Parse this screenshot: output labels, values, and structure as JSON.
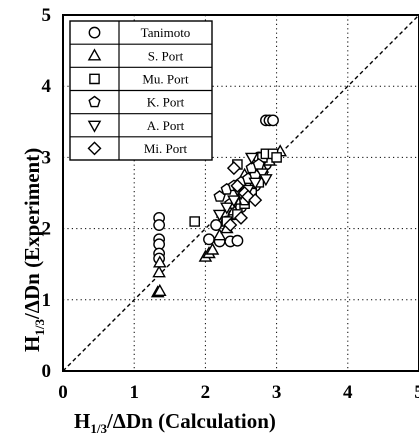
{
  "chart_data": {
    "type": "scatter",
    "xlim": [
      0,
      5
    ],
    "ylim": [
      0,
      5
    ],
    "x_ticks": [
      "0",
      "1",
      "2",
      "3",
      "4",
      "5"
    ],
    "y_ticks": [
      "0",
      "1",
      "2",
      "3",
      "4",
      "5"
    ],
    "xlabel": {
      "main": "H",
      "sub": "1/3",
      "rest": "/ΔDn  (Calculation)"
    },
    "ylabel": {
      "main": "H",
      "sub": "1/3",
      "rest": "/ΔDn  (Experiment)"
    },
    "grid": true,
    "reference_line": {
      "from": [
        0,
        0
      ],
      "to": [
        5,
        5
      ],
      "style": "dashed"
    },
    "legend_position": "top-left",
    "series": [
      {
        "name": "Tanimoto",
        "marker": "circle",
        "points": [
          [
            1.35,
            2.15
          ],
          [
            1.35,
            2.05
          ],
          [
            1.35,
            1.85
          ],
          [
            1.35,
            1.78
          ],
          [
            1.35,
            1.65
          ],
          [
            1.35,
            1.58
          ],
          [
            2.05,
            1.85
          ],
          [
            2.2,
            1.82
          ],
          [
            2.35,
            1.82
          ],
          [
            2.45,
            1.83
          ],
          [
            2.15,
            2.05
          ],
          [
            2.3,
            2.1
          ],
          [
            2.4,
            2.2
          ],
          [
            2.5,
            2.3
          ],
          [
            2.6,
            2.45
          ],
          [
            2.7,
            2.6
          ],
          [
            2.8,
            2.75
          ],
          [
            2.85,
            2.9
          ],
          [
            2.75,
            3.0
          ],
          [
            2.85,
            3.52
          ],
          [
            2.9,
            3.52
          ],
          [
            2.95,
            3.52
          ]
        ]
      },
      {
        "name": "S. Port",
        "marker": "triangle-up",
        "points": [
          [
            1.33,
            1.1
          ],
          [
            1.36,
            1.12
          ],
          [
            1.35,
            1.38
          ],
          [
            1.36,
            1.52
          ],
          [
            2.0,
            1.6
          ],
          [
            2.05,
            1.65
          ],
          [
            2.1,
            1.7
          ],
          [
            2.2,
            1.9
          ],
          [
            2.3,
            2.0
          ],
          [
            2.4,
            2.25
          ],
          [
            2.5,
            2.4
          ],
          [
            2.6,
            2.6
          ],
          [
            2.7,
            2.7
          ],
          [
            2.8,
            2.85
          ],
          [
            2.9,
            2.95
          ],
          [
            3.05,
            3.08
          ],
          [
            2.55,
            2.75
          ]
        ]
      },
      {
        "name": "Mu. Port",
        "marker": "square",
        "points": [
          [
            1.85,
            2.1
          ],
          [
            2.3,
            2.1
          ],
          [
            2.45,
            2.2
          ],
          [
            2.55,
            2.35
          ],
          [
            2.65,
            2.5
          ],
          [
            2.75,
            2.65
          ],
          [
            2.8,
            3.0
          ],
          [
            2.85,
            3.05
          ],
          [
            2.95,
            3.05
          ],
          [
            3.0,
            3.0
          ],
          [
            2.45,
            2.9
          ]
        ]
      },
      {
        "name": "K. Port",
        "marker": "pentagon",
        "points": [
          [
            2.2,
            2.45
          ],
          [
            2.3,
            2.55
          ],
          [
            2.4,
            2.6
          ],
          [
            2.5,
            2.65
          ],
          [
            2.6,
            2.7
          ],
          [
            2.7,
            2.75
          ],
          [
            2.35,
            2.35
          ],
          [
            2.55,
            2.4
          ],
          [
            2.65,
            2.85
          ],
          [
            2.75,
            2.9
          ]
        ]
      },
      {
        "name": "A. Port",
        "marker": "triangle-down",
        "points": [
          [
            2.3,
            2.3
          ],
          [
            2.4,
            2.4
          ],
          [
            2.5,
            2.5
          ],
          [
            2.6,
            2.55
          ],
          [
            2.7,
            2.65
          ],
          [
            2.8,
            2.78
          ],
          [
            2.2,
            2.2
          ],
          [
            2.45,
            2.55
          ],
          [
            2.65,
            3.0
          ],
          [
            2.85,
            2.7
          ]
        ]
      },
      {
        "name": "Mi. Port",
        "marker": "diamond",
        "points": [
          [
            2.4,
            2.85
          ],
          [
            2.45,
            2.6
          ],
          [
            2.55,
            2.5
          ],
          [
            2.6,
            2.45
          ],
          [
            2.7,
            2.4
          ],
          [
            2.5,
            2.15
          ],
          [
            2.35,
            2.05
          ]
        ]
      }
    ]
  }
}
